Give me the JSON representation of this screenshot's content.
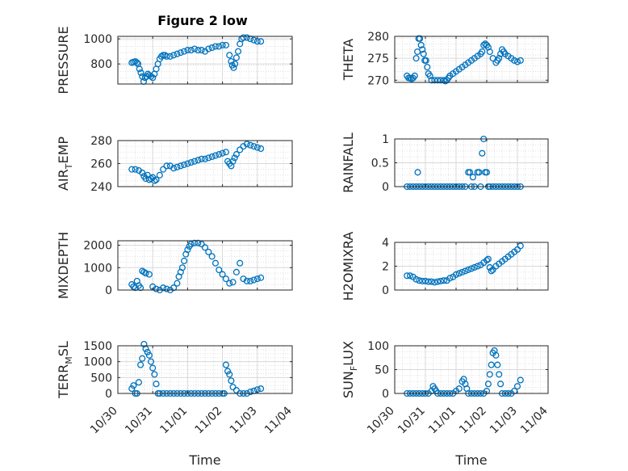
{
  "figure": {
    "title": "Figure 2 low",
    "x_axis_label": "Time",
    "x_tick_labels": [
      "10/30",
      "10/31",
      "11/01",
      "11/02",
      "11/03",
      "11/04"
    ],
    "marker_color": "#0072bd",
    "grid_color": "#d9d9d9"
  },
  "chart_data": [
    {
      "type": "scatter",
      "ylabel": "PRESSURE",
      "title": "Figure 2 low",
      "xlim": [
        0,
        5
      ],
      "ylim": [
        640,
        1020
      ],
      "yticks": [
        800,
        1000
      ],
      "ytick_labels": [
        "800",
        "1000"
      ],
      "series": [
        {
          "x": [
            0.4,
            0.45,
            0.5,
            0.55,
            0.58,
            0.62,
            0.66,
            0.7,
            0.74,
            0.78,
            0.82,
            0.86,
            0.9,
            0.95,
            1.0,
            1.05,
            1.1,
            1.15,
            1.2,
            1.25,
            1.3,
            1.35,
            1.4,
            1.5,
            1.6,
            1.7,
            1.8,
            1.9,
            2.0,
            2.1,
            2.2,
            2.3,
            2.4,
            2.5,
            2.6,
            2.7,
            2.8,
            2.9,
            3.0,
            3.1,
            3.2,
            3.25,
            3.28,
            3.32,
            3.36,
            3.4,
            3.45,
            3.5,
            3.55,
            3.6,
            3.7,
            3.8,
            3.9,
            4.0,
            4.1
          ],
          "y": [
            810,
            815,
            820,
            810,
            800,
            760,
            730,
            700,
            660,
            690,
            700,
            720,
            710,
            700,
            690,
            720,
            760,
            800,
            840,
            860,
            870,
            870,
            860,
            860,
            870,
            880,
            890,
            900,
            910,
            910,
            920,
            910,
            910,
            900,
            920,
            930,
            940,
            940,
            950,
            950,
            870,
            820,
            790,
            770,
            800,
            850,
            900,
            960,
            1000,
            1010,
            1010,
            1000,
            990,
            980,
            980
          ]
        }
      ]
    },
    {
      "type": "scatter",
      "ylabel": "THETA",
      "xlim": [
        0,
        5
      ],
      "ylim": [
        269.5,
        280
      ],
      "yticks": [
        270,
        275,
        280
      ],
      "ytick_labels": [
        "270",
        "275",
        "280"
      ],
      "series": [
        {
          "x": [
            0.4,
            0.45,
            0.5,
            0.55,
            0.6,
            0.65,
            0.7,
            0.74,
            0.78,
            0.82,
            0.86,
            0.9,
            0.94,
            0.98,
            1.02,
            1.06,
            1.1,
            1.15,
            1.2,
            1.3,
            1.4,
            1.5,
            1.6,
            1.65,
            1.7,
            1.75,
            1.8,
            1.9,
            2.0,
            2.1,
            2.2,
            2.3,
            2.4,
            2.5,
            2.6,
            2.7,
            2.8,
            2.85,
            2.9,
            2.95,
            3.0,
            3.05,
            3.1,
            3.2,
            3.3,
            3.35,
            3.4,
            3.45,
            3.5,
            3.55,
            3.6,
            3.7,
            3.8,
            3.9,
            4.0,
            4.1
          ],
          "y": [
            271,
            270.5,
            270.5,
            270.3,
            270.5,
            271,
            275,
            276.5,
            279.5,
            279.5,
            278,
            277,
            276,
            274.5,
            274.5,
            273,
            271.5,
            271,
            270,
            270,
            270,
            270,
            270,
            269.8,
            270,
            270.5,
            271,
            271.5,
            272,
            272.5,
            273,
            273.5,
            274,
            274.5,
            275,
            275.5,
            276,
            276.5,
            278,
            278.3,
            278,
            277.5,
            276.5,
            275,
            274,
            274.5,
            275,
            276,
            277,
            276.5,
            276,
            275.5,
            275,
            274.5,
            274.2,
            274.5
          ]
        }
      ]
    },
    {
      "type": "scatter",
      "ylabel": "AIR_TEMP",
      "xlim": [
        0,
        5
      ],
      "ylim": [
        240,
        280
      ],
      "yticks": [
        240,
        260,
        280
      ],
      "ytick_labels": [
        "240",
        "260",
        "280"
      ],
      "series": [
        {
          "x": [
            0.4,
            0.5,
            0.6,
            0.7,
            0.75,
            0.8,
            0.85,
            0.9,
            0.95,
            1.0,
            1.05,
            1.1,
            1.2,
            1.3,
            1.4,
            1.5,
            1.6,
            1.7,
            1.8,
            1.9,
            2.0,
            2.1,
            2.2,
            2.3,
            2.4,
            2.5,
            2.6,
            2.7,
            2.8,
            2.9,
            3.0,
            3.1,
            3.15,
            3.2,
            3.25,
            3.3,
            3.35,
            3.4,
            3.5,
            3.6,
            3.7,
            3.8,
            3.9,
            4.0,
            4.1
          ],
          "y": [
            255,
            255,
            254,
            252,
            249,
            247,
            250,
            246,
            247,
            248,
            245,
            246,
            250,
            255,
            258,
            258,
            256,
            257,
            258,
            259,
            260,
            261,
            262,
            263,
            264,
            264,
            265,
            266,
            267,
            268,
            269,
            270,
            262,
            260,
            258,
            262,
            265,
            268,
            272,
            275,
            277,
            276,
            275,
            274,
            273
          ]
        }
      ]
    },
    {
      "type": "scatter",
      "ylabel": "RAINFALL",
      "xlim": [
        0,
        5
      ],
      "ylim": [
        0,
        1
      ],
      "yticks": [
        0,
        0.5,
        1
      ],
      "ytick_labels": [
        "0",
        "0.5",
        "1"
      ],
      "series": [
        {
          "x": [
            0.4,
            0.5,
            0.6,
            0.7,
            0.75,
            0.8,
            0.9,
            1.0,
            1.1,
            1.2,
            1.3,
            1.4,
            1.5,
            1.6,
            1.7,
            1.8,
            1.9,
            2.0,
            2.1,
            2.2,
            2.3,
            2.4,
            2.45,
            2.5,
            2.55,
            2.6,
            2.7,
            2.75,
            2.8,
            2.85,
            2.9,
            2.95,
            3.0,
            3.05,
            3.1,
            3.2,
            3.3,
            3.4,
            3.5,
            3.6,
            3.7,
            3.8,
            3.9,
            4.0,
            4.1
          ],
          "y": [
            0,
            0,
            0,
            0,
            0.3,
            0,
            0,
            0,
            0,
            0,
            0,
            0,
            0,
            0,
            0,
            0,
            0,
            0,
            0,
            0,
            0,
            0.3,
            0.3,
            0,
            0.2,
            0,
            0.3,
            0.3,
            0,
            0.7,
            1.0,
            0.3,
            0.3,
            0,
            0,
            0,
            0,
            0,
            0,
            0,
            0,
            0,
            0,
            0,
            0
          ]
        }
      ]
    },
    {
      "type": "scatter",
      "ylabel": "MIXDEPTH",
      "xlim": [
        0,
        5
      ],
      "ylim": [
        0,
        2200
      ],
      "yticks": [
        0,
        1000,
        2000
      ],
      "ytick_labels": [
        "0",
        "1000",
        "2000"
      ],
      "series": [
        {
          "x": [
            0.4,
            0.45,
            0.5,
            0.55,
            0.6,
            0.65,
            0.7,
            0.75,
            0.8,
            0.9,
            1.0,
            1.1,
            1.2,
            1.3,
            1.4,
            1.5,
            1.6,
            1.7,
            1.75,
            1.8,
            1.85,
            1.9,
            1.95,
            2.0,
            2.05,
            2.1,
            2.2,
            2.3,
            2.4,
            2.5,
            2.6,
            2.7,
            2.8,
            2.9,
            3.0,
            3.1,
            3.2,
            3.3,
            3.4,
            3.5,
            3.6,
            3.7,
            3.8,
            3.9,
            4.0,
            4.1
          ],
          "y": [
            250,
            150,
            100,
            400,
            200,
            100,
            850,
            800,
            750,
            700,
            150,
            50,
            0,
            100,
            50,
            0,
            100,
            300,
            600,
            800,
            1000,
            1300,
            1600,
            1800,
            1950,
            2050,
            2100,
            2100,
            2050,
            1900,
            1700,
            1500,
            1200,
            900,
            700,
            500,
            300,
            350,
            800,
            1200,
            500,
            400,
            400,
            450,
            500,
            550
          ]
        }
      ]
    },
    {
      "type": "scatter",
      "ylabel": "H2OMIXRA",
      "xlim": [
        0,
        5
      ],
      "ylim": [
        0,
        4
      ],
      "yticks": [
        0,
        2,
        4
      ],
      "ytick_labels": [
        "0",
        "2",
        "4"
      ],
      "series": [
        {
          "x": [
            0.4,
            0.5,
            0.6,
            0.7,
            0.8,
            0.9,
            1.0,
            1.1,
            1.2,
            1.3,
            1.4,
            1.5,
            1.6,
            1.7,
            1.8,
            1.9,
            2.0,
            2.1,
            2.2,
            2.3,
            2.4,
            2.5,
            2.6,
            2.7,
            2.8,
            2.9,
            3.0,
            3.05,
            3.1,
            3.15,
            3.2,
            3.3,
            3.4,
            3.5,
            3.6,
            3.7,
            3.8,
            3.9,
            4.0,
            4.1
          ],
          "y": [
            1.2,
            1.2,
            1.1,
            0.9,
            0.8,
            0.75,
            0.75,
            0.7,
            0.7,
            0.65,
            0.7,
            0.75,
            0.8,
            0.8,
            1.0,
            1.1,
            1.3,
            1.4,
            1.5,
            1.6,
            1.7,
            1.8,
            1.9,
            2.0,
            2.1,
            2.3,
            2.5,
            2.6,
            1.9,
            1.6,
            1.7,
            2.0,
            2.2,
            2.4,
            2.6,
            2.8,
            3.0,
            3.2,
            3.4,
            3.7
          ]
        }
      ]
    },
    {
      "type": "scatter",
      "ylabel": "TERR_MSL",
      "xlim": [
        0,
        5
      ],
      "ylim": [
        0,
        1500
      ],
      "yticks": [
        0,
        500,
        1000,
        1500
      ],
      "ytick_labels": [
        "0",
        "500",
        "1000",
        "1500"
      ],
      "series": [
        {
          "x": [
            0.4,
            0.45,
            0.5,
            0.55,
            0.6,
            0.65,
            0.7,
            0.75,
            0.8,
            0.85,
            0.9,
            0.95,
            1.0,
            1.05,
            1.1,
            1.15,
            1.2,
            1.3,
            1.4,
            1.5,
            1.6,
            1.7,
            1.8,
            1.9,
            2.0,
            2.1,
            2.2,
            2.3,
            2.4,
            2.5,
            2.6,
            2.7,
            2.8,
            2.9,
            3.0,
            3.05,
            3.1,
            3.15,
            3.2,
            3.25,
            3.3,
            3.4,
            3.5,
            3.6,
            3.7,
            3.8,
            3.9,
            4.0,
            4.1
          ],
          "y": [
            150,
            250,
            0,
            0,
            350,
            900,
            1100,
            1550,
            1400,
            1300,
            1200,
            1000,
            800,
            600,
            300,
            0,
            0,
            0,
            0,
            0,
            0,
            0,
            0,
            0,
            0,
            0,
            0,
            0,
            0,
            0,
            0,
            0,
            0,
            0,
            0,
            0,
            900,
            700,
            600,
            400,
            200,
            100,
            0,
            0,
            0,
            50,
            80,
            120,
            150
          ]
        }
      ]
    },
    {
      "type": "scatter",
      "ylabel": "SUN_FLUX",
      "xlim": [
        0,
        5
      ],
      "ylim": [
        0,
        100
      ],
      "yticks": [
        0,
        50,
        100
      ],
      "ytick_labels": [
        "0",
        "50",
        "100"
      ],
      "series": [
        {
          "x": [
            0.4,
            0.5,
            0.6,
            0.7,
            0.8,
            0.9,
            1.0,
            1.1,
            1.2,
            1.25,
            1.3,
            1.35,
            1.4,
            1.5,
            1.6,
            1.7,
            1.8,
            1.9,
            2.0,
            2.1,
            2.2,
            2.25,
            2.3,
            2.35,
            2.4,
            2.5,
            2.6,
            2.7,
            2.8,
            2.9,
            3.0,
            3.05,
            3.1,
            3.15,
            3.2,
            3.25,
            3.3,
            3.35,
            3.4,
            3.45,
            3.5,
            3.6,
            3.7,
            3.8,
            3.9,
            4.0,
            4.1
          ],
          "y": [
            0,
            0,
            0,
            0,
            0,
            0,
            0,
            0,
            5,
            15,
            10,
            5,
            0,
            0,
            0,
            0,
            0,
            0,
            5,
            10,
            25,
            30,
            20,
            10,
            0,
            0,
            0,
            0,
            0,
            0,
            5,
            20,
            40,
            60,
            85,
            90,
            80,
            60,
            40,
            20,
            0,
            0,
            0,
            0,
            5,
            15,
            28
          ]
        }
      ]
    }
  ]
}
